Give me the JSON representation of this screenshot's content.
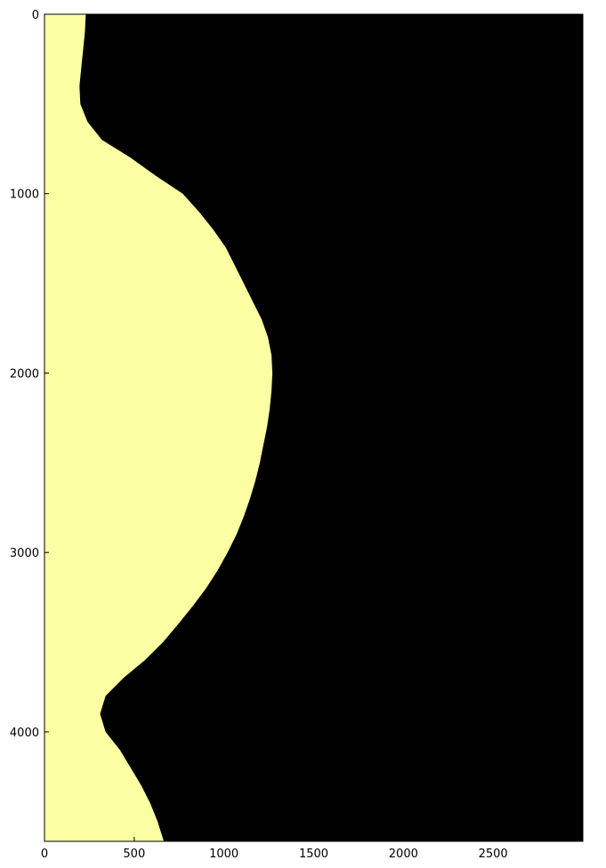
{
  "chart_data": {
    "type": "heatmap",
    "title": "",
    "xlabel": "",
    "ylabel": "",
    "xlim": [
      0,
      3000
    ],
    "ylim": [
      4610,
      0
    ],
    "grid": false,
    "x_ticks": [
      0,
      500,
      1000,
      1500,
      2000,
      2500
    ],
    "y_ticks": [
      0,
      1000,
      2000,
      3000,
      4000
    ],
    "x_tick_labels": [
      "0",
      "500",
      "1000",
      "1500",
      "2000",
      "2500"
    ],
    "y_tick_labels": [
      "0",
      "1000",
      "2000",
      "3000",
      "4000"
    ],
    "colors": {
      "background": "#000000",
      "region": "#fbfea3"
    },
    "region_boundary": [
      [
        0,
        230
      ],
      [
        100,
        225
      ],
      [
        200,
        215
      ],
      [
        300,
        205
      ],
      [
        400,
        195
      ],
      [
        500,
        200
      ],
      [
        600,
        240
      ],
      [
        700,
        320
      ],
      [
        800,
        480
      ],
      [
        900,
        620
      ],
      [
        1000,
        770
      ],
      [
        1100,
        860
      ],
      [
        1200,
        940
      ],
      [
        1300,
        1010
      ],
      [
        1400,
        1060
      ],
      [
        1500,
        1110
      ],
      [
        1600,
        1160
      ],
      [
        1700,
        1210
      ],
      [
        1800,
        1245
      ],
      [
        1900,
        1265
      ],
      [
        2000,
        1270
      ],
      [
        2100,
        1265
      ],
      [
        2200,
        1255
      ],
      [
        2300,
        1240
      ],
      [
        2400,
        1220
      ],
      [
        2500,
        1200
      ],
      [
        2600,
        1175
      ],
      [
        2700,
        1145
      ],
      [
        2800,
        1110
      ],
      [
        2900,
        1070
      ],
      [
        3000,
        1020
      ],
      [
        3100,
        965
      ],
      [
        3200,
        900
      ],
      [
        3300,
        825
      ],
      [
        3400,
        745
      ],
      [
        3500,
        660
      ],
      [
        3600,
        560
      ],
      [
        3700,
        440
      ],
      [
        3800,
        340
      ],
      [
        3900,
        310
      ],
      [
        4000,
        340
      ],
      [
        4100,
        420
      ],
      [
        4200,
        480
      ],
      [
        4300,
        540
      ],
      [
        4400,
        590
      ],
      [
        4500,
        630
      ],
      [
        4610,
        665
      ]
    ]
  }
}
